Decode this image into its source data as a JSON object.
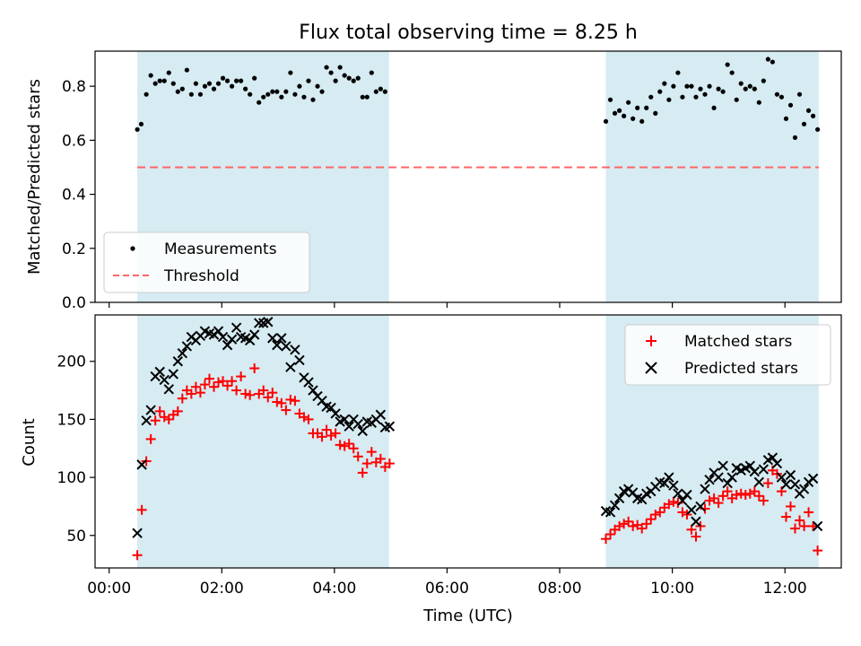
{
  "chart_data": {
    "type": "scatter",
    "title": "Flux total observing time = 8.25 h",
    "xlabel": "Time (UTC)",
    "x_units": "hours UTC",
    "xlim_hours": [
      -0.25,
      13.0
    ],
    "xticks": [
      {
        "h": 0,
        "label": "00:00"
      },
      {
        "h": 2,
        "label": "02:00"
      },
      {
        "h": 4,
        "label": "04:00"
      },
      {
        "h": 6,
        "label": "06:00"
      },
      {
        "h": 8,
        "label": "08:00"
      },
      {
        "h": 10,
        "label": "10:00"
      },
      {
        "h": 12,
        "label": "12:00"
      }
    ],
    "observing_windows_hours": [
      [
        0.5,
        4.97
      ],
      [
        8.82,
        12.6
      ]
    ],
    "colors": {
      "window": "#add8e6",
      "measurements": "#000000",
      "threshold": "#ff6666",
      "matched": "#ff0000",
      "predicted": "#000000"
    },
    "top_panel": {
      "ylabel": "Matched/Predicted stars",
      "ylim": [
        0.0,
        0.93
      ],
      "yticks": [
        0.0,
        0.2,
        0.4,
        0.6,
        0.8
      ],
      "threshold": 0.5,
      "legend_loc": "lower-left",
      "legend": [
        {
          "label": "Measurements",
          "marker": "dot"
        },
        {
          "label": "Threshold",
          "marker": "dashed-line"
        }
      ],
      "measurements": [
        [
          0.5,
          0.64
        ],
        [
          0.57,
          0.66
        ],
        [
          0.66,
          0.77
        ],
        [
          0.74,
          0.84
        ],
        [
          0.82,
          0.81
        ],
        [
          0.9,
          0.82
        ],
        [
          0.98,
          0.82
        ],
        [
          1.06,
          0.85
        ],
        [
          1.14,
          0.81
        ],
        [
          1.22,
          0.78
        ],
        [
          1.3,
          0.79
        ],
        [
          1.38,
          0.86
        ],
        [
          1.46,
          0.77
        ],
        [
          1.54,
          0.81
        ],
        [
          1.62,
          0.77
        ],
        [
          1.7,
          0.8
        ],
        [
          1.78,
          0.81
        ],
        [
          1.86,
          0.79
        ],
        [
          1.94,
          0.81
        ],
        [
          2.02,
          0.83
        ],
        [
          2.1,
          0.82
        ],
        [
          2.18,
          0.8
        ],
        [
          2.26,
          0.82
        ],
        [
          2.34,
          0.82
        ],
        [
          2.42,
          0.79
        ],
        [
          2.5,
          0.77
        ],
        [
          2.58,
          0.83
        ],
        [
          2.66,
          0.74
        ],
        [
          2.74,
          0.76
        ],
        [
          2.82,
          0.77
        ],
        [
          2.9,
          0.78
        ],
        [
          2.98,
          0.78
        ],
        [
          3.06,
          0.76
        ],
        [
          3.14,
          0.78
        ],
        [
          3.22,
          0.85
        ],
        [
          3.3,
          0.77
        ],
        [
          3.38,
          0.8
        ],
        [
          3.46,
          0.76
        ],
        [
          3.54,
          0.82
        ],
        [
          3.62,
          0.75
        ],
        [
          3.7,
          0.8
        ],
        [
          3.78,
          0.78
        ],
        [
          3.86,
          0.87
        ],
        [
          3.94,
          0.85
        ],
        [
          4.02,
          0.82
        ],
        [
          4.1,
          0.87
        ],
        [
          4.18,
          0.84
        ],
        [
          4.26,
          0.83
        ],
        [
          4.34,
          0.82
        ],
        [
          4.42,
          0.83
        ],
        [
          4.5,
          0.76
        ],
        [
          4.58,
          0.76
        ],
        [
          4.66,
          0.85
        ],
        [
          4.74,
          0.78
        ],
        [
          4.82,
          0.79
        ],
        [
          4.9,
          0.78
        ],
        [
          8.82,
          0.67
        ],
        [
          8.9,
          0.75
        ],
        [
          8.98,
          0.7
        ],
        [
          9.06,
          0.71
        ],
        [
          9.14,
          0.69
        ],
        [
          9.22,
          0.74
        ],
        [
          9.3,
          0.68
        ],
        [
          9.38,
          0.72
        ],
        [
          9.46,
          0.67
        ],
        [
          9.54,
          0.72
        ],
        [
          9.62,
          0.76
        ],
        [
          9.7,
          0.7
        ],
        [
          9.78,
          0.78
        ],
        [
          9.86,
          0.81
        ],
        [
          9.94,
          0.75
        ],
        [
          10.02,
          0.8
        ],
        [
          10.1,
          0.85
        ],
        [
          10.18,
          0.76
        ],
        [
          10.26,
          0.8
        ],
        [
          10.34,
          0.8
        ],
        [
          10.42,
          0.76
        ],
        [
          10.5,
          0.79
        ],
        [
          10.58,
          0.77
        ],
        [
          10.66,
          0.8
        ],
        [
          10.74,
          0.72
        ],
        [
          10.82,
          0.79
        ],
        [
          10.9,
          0.78
        ],
        [
          10.98,
          0.88
        ],
        [
          11.06,
          0.85
        ],
        [
          11.14,
          0.75
        ],
        [
          11.22,
          0.81
        ],
        [
          11.3,
          0.79
        ],
        [
          11.38,
          0.8
        ],
        [
          11.46,
          0.79
        ],
        [
          11.54,
          0.74
        ],
        [
          11.62,
          0.82
        ],
        [
          11.7,
          0.9
        ],
        [
          11.78,
          0.89
        ],
        [
          11.86,
          0.77
        ],
        [
          11.94,
          0.76
        ],
        [
          12.02,
          0.68
        ],
        [
          12.1,
          0.73
        ],
        [
          12.18,
          0.61
        ],
        [
          12.26,
          0.77
        ],
        [
          12.34,
          0.66
        ],
        [
          12.42,
          0.71
        ],
        [
          12.5,
          0.69
        ],
        [
          12.58,
          0.64
        ]
      ]
    },
    "bottom_panel": {
      "ylabel": "Count",
      "ylim": [
        22,
        240
      ],
      "yticks": [
        50,
        100,
        150,
        200
      ],
      "legend_loc": "upper-right",
      "legend": [
        {
          "label": "Matched stars",
          "marker": "plus"
        },
        {
          "label": "Predicted stars",
          "marker": "x"
        }
      ],
      "matched": [
        [
          0.5,
          33
        ],
        [
          0.58,
          72
        ],
        [
          0.66,
          114
        ],
        [
          0.74,
          133
        ],
        [
          0.82,
          149
        ],
        [
          0.9,
          157
        ],
        [
          0.98,
          152
        ],
        [
          1.06,
          150
        ],
        [
          1.14,
          154
        ],
        [
          1.22,
          157
        ],
        [
          1.3,
          168
        ],
        [
          1.38,
          175
        ],
        [
          1.46,
          172
        ],
        [
          1.54,
          178
        ],
        [
          1.62,
          173
        ],
        [
          1.7,
          180
        ],
        [
          1.78,
          185
        ],
        [
          1.86,
          178
        ],
        [
          1.94,
          182
        ],
        [
          2.02,
          183
        ],
        [
          2.1,
          179
        ],
        [
          2.18,
          183
        ],
        [
          2.26,
          175
        ],
        [
          2.34,
          187
        ],
        [
          2.42,
          172
        ],
        [
          2.5,
          171
        ],
        [
          2.58,
          194
        ],
        [
          2.66,
          172
        ],
        [
          2.74,
          175
        ],
        [
          2.82,
          169
        ],
        [
          2.9,
          173
        ],
        [
          2.98,
          165
        ],
        [
          3.06,
          164
        ],
        [
          3.14,
          158
        ],
        [
          3.22,
          167
        ],
        [
          3.3,
          166
        ],
        [
          3.38,
          155
        ],
        [
          3.46,
          152
        ],
        [
          3.54,
          150
        ],
        [
          3.62,
          138
        ],
        [
          3.7,
          138
        ],
        [
          3.78,
          135
        ],
        [
          3.86,
          141
        ],
        [
          3.94,
          136
        ],
        [
          4.02,
          138
        ],
        [
          4.1,
          128
        ],
        [
          4.18,
          127
        ],
        [
          4.26,
          129
        ],
        [
          4.34,
          125
        ],
        [
          4.42,
          118
        ],
        [
          4.5,
          104
        ],
        [
          4.58,
          112
        ],
        [
          4.66,
          122
        ],
        [
          4.74,
          113
        ],
        [
          4.82,
          116
        ],
        [
          4.9,
          109
        ],
        [
          4.98,
          112
        ],
        [
          8.82,
          47
        ],
        [
          8.9,
          51
        ],
        [
          8.98,
          55
        ],
        [
          9.06,
          58
        ],
        [
          9.14,
          60
        ],
        [
          9.22,
          62
        ],
        [
          9.3,
          58
        ],
        [
          9.38,
          59
        ],
        [
          9.46,
          56
        ],
        [
          9.54,
          60
        ],
        [
          9.62,
          64
        ],
        [
          9.7,
          68
        ],
        [
          9.78,
          70
        ],
        [
          9.86,
          74
        ],
        [
          9.94,
          77
        ],
        [
          10.02,
          79
        ],
        [
          10.1,
          78
        ],
        [
          10.18,
          70
        ],
        [
          10.26,
          68
        ],
        [
          10.34,
          55
        ],
        [
          10.42,
          49
        ],
        [
          10.5,
          58
        ],
        [
          10.58,
          73
        ],
        [
          10.66,
          80
        ],
        [
          10.74,
          82
        ],
        [
          10.82,
          78
        ],
        [
          10.9,
          84
        ],
        [
          10.98,
          88
        ],
        [
          11.06,
          82
        ],
        [
          11.14,
          85
        ],
        [
          11.22,
          86
        ],
        [
          11.3,
          85
        ],
        [
          11.38,
          86
        ],
        [
          11.46,
          88
        ],
        [
          11.54,
          84
        ],
        [
          11.62,
          80
        ],
        [
          11.7,
          95
        ],
        [
          11.78,
          106
        ],
        [
          11.86,
          103
        ],
        [
          11.94,
          88
        ],
        [
          12.02,
          66
        ],
        [
          12.1,
          75
        ],
        [
          12.18,
          56
        ],
        [
          12.26,
          63
        ],
        [
          12.34,
          58
        ],
        [
          12.42,
          70
        ],
        [
          12.5,
          58
        ],
        [
          12.58,
          37
        ]
      ],
      "predicted": [
        [
          0.5,
          52
        ],
        [
          0.58,
          111
        ],
        [
          0.66,
          149
        ],
        [
          0.74,
          158
        ],
        [
          0.82,
          187
        ],
        [
          0.9,
          191
        ],
        [
          0.98,
          184
        ],
        [
          1.06,
          176
        ],
        [
          1.14,
          189
        ],
        [
          1.22,
          200
        ],
        [
          1.3,
          207
        ],
        [
          1.38,
          213
        ],
        [
          1.46,
          221
        ],
        [
          1.54,
          218
        ],
        [
          1.62,
          222
        ],
        [
          1.7,
          226
        ],
        [
          1.78,
          224
        ],
        [
          1.86,
          223
        ],
        [
          1.94,
          226
        ],
        [
          2.02,
          221
        ],
        [
          2.1,
          214
        ],
        [
          2.18,
          219
        ],
        [
          2.26,
          229
        ],
        [
          2.34,
          221
        ],
        [
          2.42,
          220
        ],
        [
          2.5,
          218
        ],
        [
          2.58,
          223
        ],
        [
          2.66,
          233
        ],
        [
          2.74,
          233
        ],
        [
          2.82,
          234
        ],
        [
          2.9,
          220
        ],
        [
          2.98,
          214
        ],
        [
          3.06,
          220
        ],
        [
          3.14,
          213
        ],
        [
          3.22,
          195
        ],
        [
          3.3,
          210
        ],
        [
          3.38,
          201
        ],
        [
          3.46,
          186
        ],
        [
          3.54,
          182
        ],
        [
          3.62,
          175
        ],
        [
          3.7,
          170
        ],
        [
          3.78,
          166
        ],
        [
          3.86,
          161
        ],
        [
          3.94,
          160
        ],
        [
          4.02,
          155
        ],
        [
          4.1,
          148
        ],
        [
          4.18,
          150
        ],
        [
          4.26,
          144
        ],
        [
          4.34,
          150
        ],
        [
          4.42,
          146
        ],
        [
          4.5,
          140
        ],
        [
          4.58,
          148
        ],
        [
          4.66,
          147
        ],
        [
          4.74,
          150
        ],
        [
          4.82,
          154
        ],
        [
          4.9,
          143
        ],
        [
          4.98,
          144
        ],
        [
          8.82,
          71
        ],
        [
          8.9,
          70
        ],
        [
          8.98,
          76
        ],
        [
          9.06,
          82
        ],
        [
          9.14,
          88
        ],
        [
          9.22,
          90
        ],
        [
          9.3,
          87
        ],
        [
          9.38,
          82
        ],
        [
          9.46,
          81
        ],
        [
          9.54,
          86
        ],
        [
          9.62,
          88
        ],
        [
          9.7,
          92
        ],
        [
          9.78,
          96
        ],
        [
          9.86,
          95
        ],
        [
          9.94,
          100
        ],
        [
          10.02,
          93
        ],
        [
          10.1,
          86
        ],
        [
          10.18,
          80
        ],
        [
          10.26,
          85
        ],
        [
          10.34,
          72
        ],
        [
          10.42,
          62
        ],
        [
          10.5,
          75
        ],
        [
          10.58,
          90
        ],
        [
          10.66,
          98
        ],
        [
          10.74,
          104
        ],
        [
          10.82,
          100
        ],
        [
          10.9,
          110
        ],
        [
          10.98,
          95
        ],
        [
          11.06,
          100
        ],
        [
          11.14,
          108
        ],
        [
          11.22,
          106
        ],
        [
          11.3,
          108
        ],
        [
          11.38,
          110
        ],
        [
          11.46,
          105
        ],
        [
          11.54,
          96
        ],
        [
          11.62,
          107
        ],
        [
          11.7,
          115
        ],
        [
          11.78,
          117
        ],
        [
          11.86,
          112
        ],
        [
          11.94,
          100
        ],
        [
          12.02,
          94
        ],
        [
          12.1,
          102
        ],
        [
          12.18,
          94
        ],
        [
          12.26,
          86
        ],
        [
          12.34,
          90
        ],
        [
          12.42,
          96
        ],
        [
          12.5,
          99
        ],
        [
          12.58,
          58
        ]
      ]
    }
  }
}
